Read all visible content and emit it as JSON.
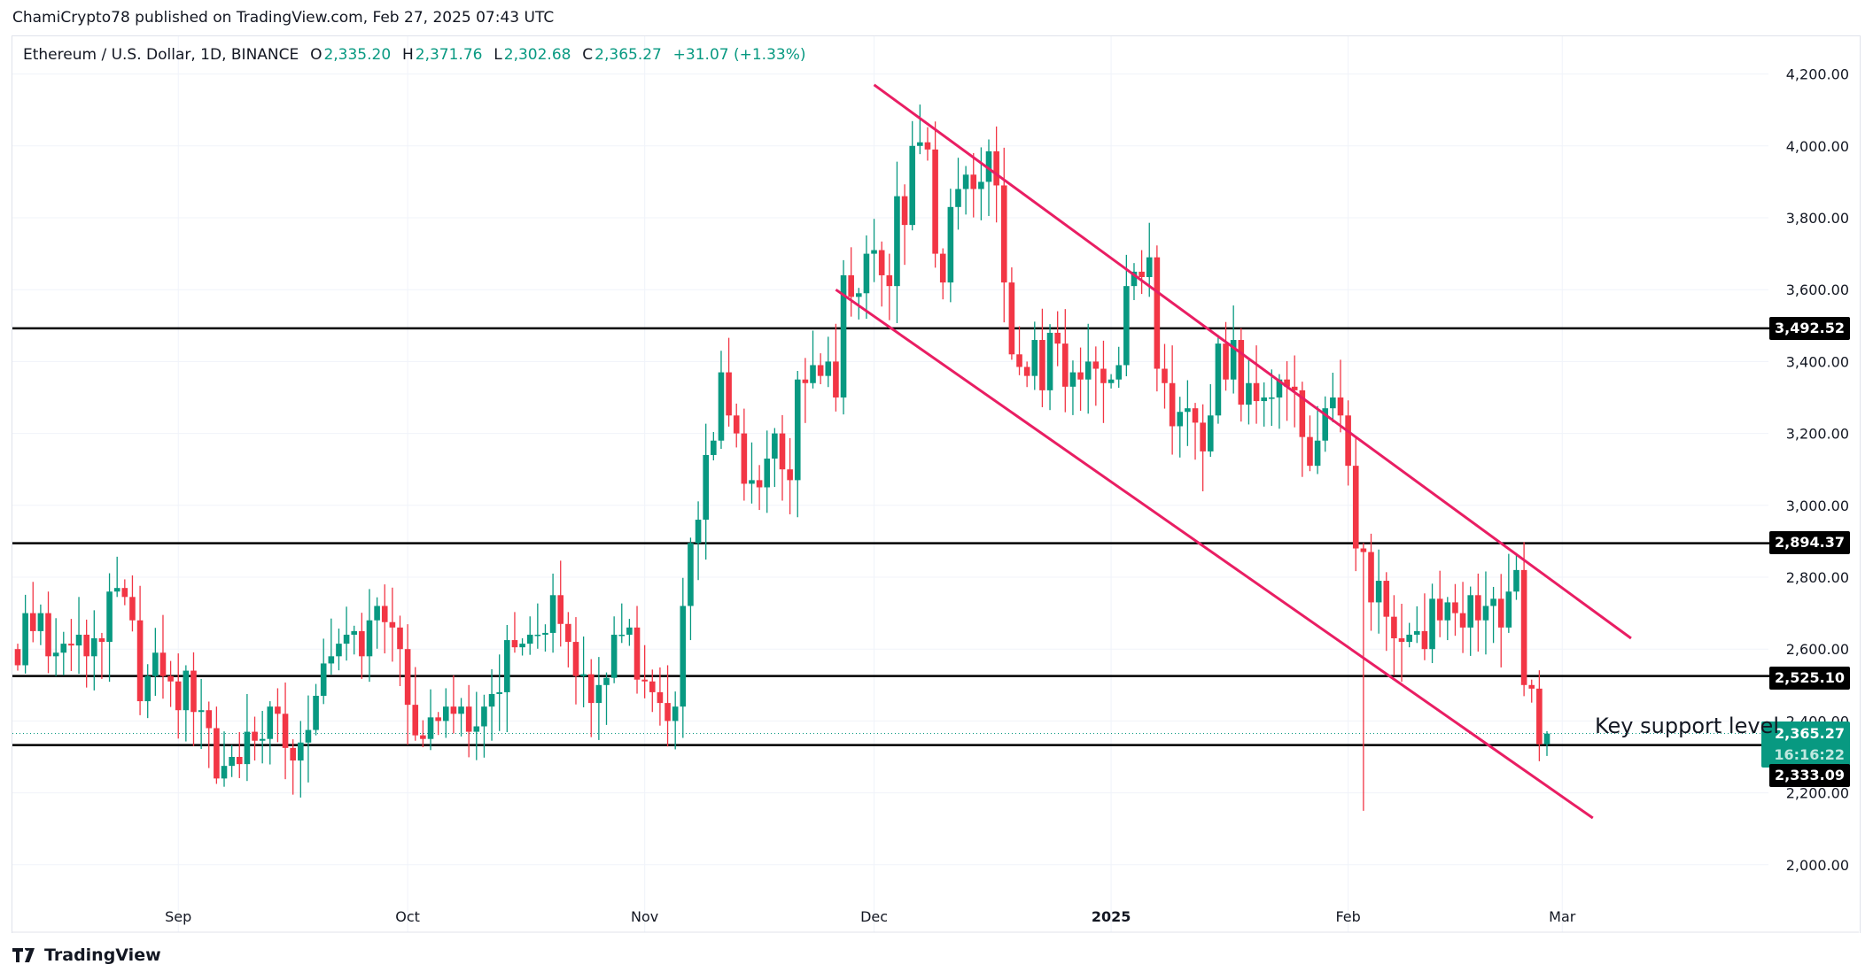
{
  "header": {
    "published": "ChamiCrypto78 published on TradingView.com, Feb 27, 2025 07:43 UTC",
    "symbol": "Ethereum / U.S. Dollar, 1D, BINANCE",
    "o_label": "O",
    "o": "2,335.20",
    "h_label": "H",
    "h": "2,371.76",
    "l_label": "L",
    "l": "2,302.68",
    "c_label": "C",
    "c": "2,365.27",
    "change": "+31.07 (+1.33%)"
  },
  "levels": {
    "l1": "3,492.52",
    "l2": "2,894.37",
    "l3": "2,525.10",
    "l4": "2,333.09"
  },
  "current_price": {
    "price": "2,365.27",
    "countdown": "16:16:22"
  },
  "annotation": "Key support level",
  "brand": "TradingView",
  "colors": {
    "up": "#089981",
    "down": "#f23645",
    "channel": "#e91e63",
    "level": "#000000"
  },
  "chart_data": {
    "type": "candlestick",
    "title": "Ethereum / U.S. Dollar, 1D, BINANCE",
    "start_date": "2024-08-11",
    "ylim": [
      1900,
      4300
    ],
    "yticks": [
      2000,
      2200,
      2400,
      2600,
      2800,
      3000,
      3200,
      3400,
      3600,
      3800,
      4000,
      4200
    ],
    "ytick_labels": [
      "2,000.00",
      "2,200.00",
      "2,400.00",
      "2,600.00",
      "2,800.00",
      "3,000.00",
      "3,200.00",
      "3,400.00",
      "3,600.00",
      "3,800.00",
      "4,000.00",
      "4,200.00"
    ],
    "xticks": [
      {
        "label": "Sep",
        "index": 21
      },
      {
        "label": "Oct",
        "index": 51
      },
      {
        "label": "Nov",
        "index": 82
      },
      {
        "label": "Dec",
        "index": 112
      },
      {
        "label": "2025",
        "index": 143,
        "bold": true
      },
      {
        "label": "Feb",
        "index": 174
      },
      {
        "label": "Mar",
        "index": 202
      }
    ],
    "horizontal_levels": [
      3492.52,
      2894.37,
      2525.1,
      2333.09
    ],
    "current_price": 2365.27,
    "last_candle": {
      "open": 2335.2,
      "high": 2371.76,
      "low": 2302.68,
      "close": 2365.27
    },
    "closes": [
      2555,
      2700,
      2650,
      2700,
      2580,
      2590,
      2615,
      2610,
      2640,
      2580,
      2630,
      2620,
      2760,
      2770,
      2745,
      2680,
      2455,
      2525,
      2590,
      2525,
      2510,
      2430,
      2540,
      2425,
      2430,
      2380,
      2240,
      2275,
      2300,
      2280,
      2370,
      2345,
      2350,
      2440,
      2420,
      2325,
      2290,
      2340,
      2375,
      2470,
      2560,
      2580,
      2615,
      2640,
      2650,
      2580,
      2680,
      2720,
      2675,
      2660,
      2600,
      2445,
      2360,
      2350,
      2410,
      2400,
      2440,
      2420,
      2440,
      2370,
      2385,
      2440,
      2475,
      2480,
      2625,
      2605,
      2615,
      2640,
      2640,
      2645,
      2750,
      2670,
      2620,
      2525,
      2530,
      2450,
      2500,
      2520,
      2640,
      2640,
      2660,
      2515,
      2510,
      2480,
      2450,
      2400,
      2440,
      2720,
      2895,
      2960,
      3140,
      3180,
      3370,
      3250,
      3200,
      3060,
      3070,
      3050,
      3130,
      3200,
      3100,
      3070,
      3350,
      3340,
      3390,
      3360,
      3400,
      3300,
      3640,
      3580,
      3590,
      3700,
      3710,
      3640,
      3610,
      3860,
      3780,
      4000,
      4010,
      3990,
      3700,
      3620,
      3830,
      3880,
      3920,
      3880,
      3900,
      3985,
      3890,
      3620,
      3420,
      3385,
      3360,
      3460,
      3320,
      3480,
      3450,
      3330,
      3370,
      3350,
      3400,
      3380,
      3340,
      3350,
      3390,
      3610,
      3650,
      3635,
      3690,
      3380,
      3340,
      3220,
      3260,
      3270,
      3230,
      3150,
      3250,
      3450,
      3350,
      3460,
      3280,
      3340,
      3290,
      3300,
      3300,
      3350,
      3330,
      3320,
      3190,
      3110,
      3180,
      3270,
      3300,
      3250,
      3110,
      2880,
      2870,
      2730,
      2790,
      2690,
      2630,
      2620,
      2640,
      2650,
      2600,
      2740,
      2680,
      2730,
      2700,
      2660,
      2750,
      2680,
      2720,
      2740,
      2660,
      2760,
      2820,
      2500,
      2490,
      2335,
      2365
    ],
    "channel": {
      "type": "descending",
      "upper": [
        [
          112,
          4170
        ],
        [
          211,
          2630
        ]
      ],
      "lower": [
        [
          107,
          3600
        ],
        [
          206,
          2130
        ]
      ]
    }
  }
}
